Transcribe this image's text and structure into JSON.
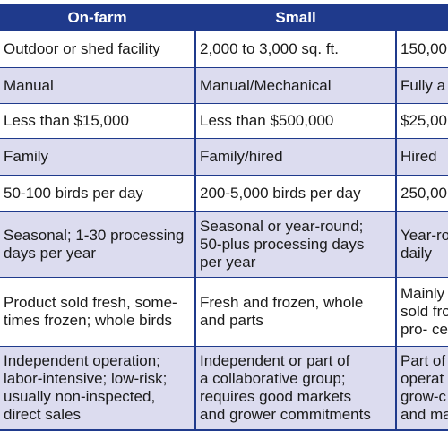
{
  "colors": {
    "header_bg": "#1f3a8c",
    "header_text": "#ffffff",
    "row_tint": "#dcdcef",
    "row_white": "#ffffff",
    "border": "#1f3a8c"
  },
  "table": {
    "headers": [
      "On-farm",
      "Small",
      ""
    ],
    "rows": [
      {
        "style": "white",
        "cells": [
          "Outdoor or shed facility",
          "2,000 to 3,000 sq. ft.",
          "150,00"
        ]
      },
      {
        "style": "tint",
        "cells": [
          "Manual",
          "Manual/Mechanical",
          "Fully a"
        ]
      },
      {
        "style": "white",
        "cells": [
          "Less than $15,000",
          "Less than $500,000",
          "$25,00"
        ]
      },
      {
        "style": "tint",
        "cells": [
          "Family",
          "Family/hired",
          "Hired"
        ]
      },
      {
        "style": "white",
        "cells": [
          "50-100 birds per day",
          "200-5,000 birds per day",
          "250,00"
        ]
      },
      {
        "style": "tint",
        "cells": [
          "Seasonal; 1-30 processing\ndays per year",
          "Seasonal or year-round;\n50-plus processing days\nper year",
          "Year-ro\ndaily"
        ]
      },
      {
        "style": "white",
        "cells": [
          "Product sold fresh, some-\ntimes frozen; whole birds",
          "Fresh and frozen, whole\nand parts",
          "Mainly\nsold fro\npro- ce"
        ]
      },
      {
        "style": "tint",
        "cells": [
          "Independent operation;\nlabor-intensive; low-risk;\nusually non-inspected,\ndirect sales",
          "Independent or part of\na collaborative group;\nrequires good markets\nand grower commitments",
          "Part of\noperat\ngrow-c\nand ma"
        ]
      }
    ]
  }
}
